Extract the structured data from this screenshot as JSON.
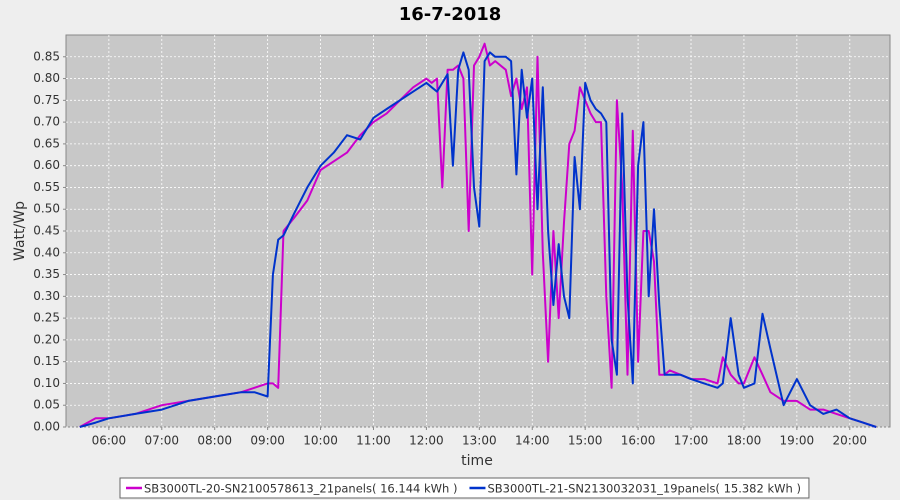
{
  "chart_data": {
    "type": "line",
    "title": "16-7-2018",
    "x_label": "time",
    "y_label": "Watt/Wp",
    "x": [
      5.45,
      5.75,
      6.0,
      6.5,
      7.0,
      7.5,
      8.0,
      8.5,
      8.75,
      9.0,
      9.1,
      9.2,
      9.3,
      9.5,
      9.75,
      10.0,
      10.25,
      10.5,
      10.75,
      11.0,
      11.25,
      11.5,
      11.75,
      12.0,
      12.1,
      12.2,
      12.3,
      12.4,
      12.5,
      12.6,
      12.7,
      12.8,
      12.9,
      13.0,
      13.1,
      13.2,
      13.3,
      13.5,
      13.6,
      13.7,
      13.8,
      13.9,
      14.0,
      14.1,
      14.2,
      14.3,
      14.4,
      14.5,
      14.6,
      14.7,
      14.8,
      14.9,
      15.0,
      15.1,
      15.2,
      15.3,
      15.4,
      15.5,
      15.6,
      15.7,
      15.8,
      15.9,
      16.0,
      16.1,
      16.2,
      16.3,
      16.4,
      16.5,
      16.6,
      16.8,
      17.0,
      17.25,
      17.5,
      17.6,
      17.75,
      17.9,
      18.0,
      18.2,
      18.35,
      18.5,
      18.75,
      19.0,
      19.25,
      19.5,
      19.75,
      20.0,
      20.25,
      20.5
    ],
    "series": [
      {
        "name": "SB3000TL-20-SN2100578613_21panels( 16.144 kWh )",
        "color": "#cc00cc",
        "values": [
          0,
          0.02,
          0.02,
          0.03,
          0.05,
          0.06,
          0.07,
          0.08,
          0.09,
          0.1,
          0.1,
          0.09,
          0.45,
          0.48,
          0.52,
          0.59,
          0.61,
          0.63,
          0.67,
          0.7,
          0.72,
          0.75,
          0.78,
          0.8,
          0.79,
          0.8,
          0.55,
          0.82,
          0.82,
          0.83,
          0.8,
          0.45,
          0.83,
          0.85,
          0.88,
          0.83,
          0.84,
          0.82,
          0.76,
          0.8,
          0.73,
          0.78,
          0.35,
          0.85,
          0.4,
          0.15,
          0.45,
          0.25,
          0.47,
          0.65,
          0.68,
          0.78,
          0.75,
          0.72,
          0.7,
          0.7,
          0.3,
          0.09,
          0.75,
          0.55,
          0.12,
          0.68,
          0.15,
          0.45,
          0.45,
          0.38,
          0.12,
          0.12,
          0.13,
          0.12,
          0.11,
          0.11,
          0.1,
          0.16,
          0.12,
          0.1,
          0.1,
          0.16,
          0.12,
          0.08,
          0.06,
          0.06,
          0.04,
          0.04,
          0.03,
          0.02,
          0.01,
          0
        ]
      },
      {
        "name": "SB3000TL-21-SN2130032031_19panels( 15.382 kWh )",
        "color": "#0033cc",
        "values": [
          0,
          0.01,
          0.02,
          0.03,
          0.04,
          0.06,
          0.07,
          0.08,
          0.08,
          0.07,
          0.35,
          0.43,
          0.44,
          0.49,
          0.55,
          0.6,
          0.63,
          0.67,
          0.66,
          0.71,
          0.73,
          0.75,
          0.77,
          0.79,
          0.78,
          0.77,
          0.79,
          0.81,
          0.6,
          0.82,
          0.86,
          0.82,
          0.55,
          0.46,
          0.84,
          0.86,
          0.85,
          0.85,
          0.84,
          0.58,
          0.82,
          0.71,
          0.8,
          0.5,
          0.78,
          0.45,
          0.28,
          0.42,
          0.3,
          0.25,
          0.62,
          0.5,
          0.79,
          0.75,
          0.73,
          0.72,
          0.7,
          0.2,
          0.12,
          0.72,
          0.3,
          0.1,
          0.6,
          0.7,
          0.3,
          0.5,
          0.28,
          0.12,
          0.12,
          0.12,
          0.11,
          0.1,
          0.09,
          0.1,
          0.25,
          0.12,
          0.09,
          0.1,
          0.26,
          0.18,
          0.05,
          0.11,
          0.05,
          0.03,
          0.04,
          0.02,
          0.01,
          0
        ]
      }
    ],
    "xlim": [
      5.19,
      20.76
    ],
    "xticks": [
      {
        "value": 6,
        "label": "06:00"
      },
      {
        "value": 7,
        "label": "07:00"
      },
      {
        "value": 8,
        "label": "08:00"
      },
      {
        "value": 9,
        "label": "09:00"
      },
      {
        "value": 10,
        "label": "10:00"
      },
      {
        "value": 11,
        "label": "11:00"
      },
      {
        "value": 12,
        "label": "12:00"
      },
      {
        "value": 13,
        "label": "13:00"
      },
      {
        "value": 14,
        "label": "14:00"
      },
      {
        "value": 15,
        "label": "15:00"
      },
      {
        "value": 16,
        "label": "16:00"
      },
      {
        "value": 17,
        "label": "17:00"
      },
      {
        "value": 18,
        "label": "18:00"
      },
      {
        "value": 19,
        "label": "19:00"
      },
      {
        "value": 20,
        "label": "20:00"
      }
    ],
    "ylim": [
      0,
      0.9
    ],
    "yticks": [
      {
        "value": 0,
        "label": "0.00"
      },
      0.05,
      {
        "value": 0.1,
        "label": "0.10"
      },
      0.15,
      {
        "value": 0.2,
        "label": "0.20"
      },
      0.25,
      {
        "value": 0.3,
        "label": "0.30"
      },
      0.35,
      {
        "value": 0.4,
        "label": "0.40"
      },
      0.45,
      {
        "value": 0.5,
        "label": "0.50"
      },
      0.55,
      {
        "value": 0.6,
        "label": "0.60"
      },
      0.65,
      {
        "value": 0.7,
        "label": "0.70"
      },
      0.75,
      {
        "value": 0.8,
        "label": "0.80"
      },
      0.85
    ],
    "grid": true,
    "legend": "bottom"
  }
}
